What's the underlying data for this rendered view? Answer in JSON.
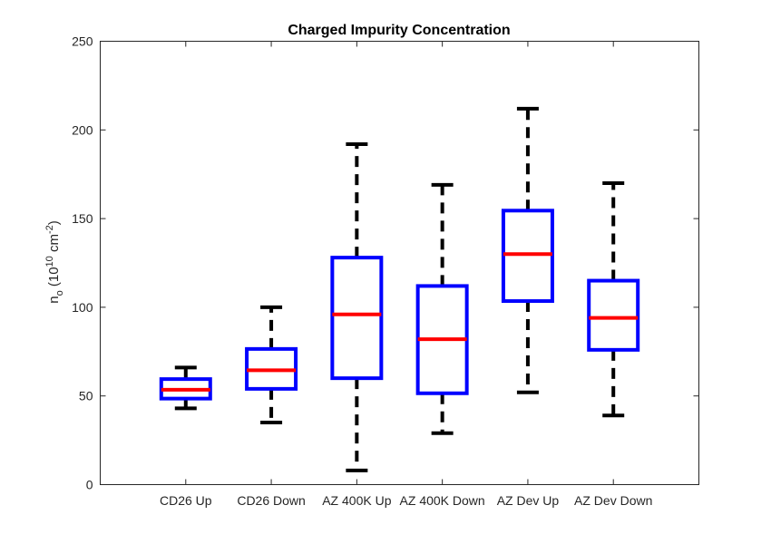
{
  "chart_data": {
    "type": "boxplot",
    "title": "Charged Impurity Concentration",
    "xlabel": "",
    "ylabel": {
      "main": "n",
      "sub": "o",
      "unit_open": " (10",
      "unit_exp1": "10",
      "unit_mid": " cm",
      "unit_exp2": "-2",
      "unit_close": ")"
    },
    "ylim": [
      0,
      250
    ],
    "yticks": [
      "0",
      "50",
      "100",
      "150",
      "200",
      "250"
    ],
    "grid": false,
    "categories": [
      "CD26 Up",
      "CD26 Down",
      "AZ 400K Up",
      "AZ 400K Down",
      "AZ Dev Up",
      "AZ Dev Down"
    ],
    "boxes": [
      {
        "whisker_low": 43,
        "q1": 48.5,
        "median": 53.5,
        "q3": 59.5,
        "whisker_high": 66
      },
      {
        "whisker_low": 35,
        "q1": 54,
        "median": 64.5,
        "q3": 76.5,
        "whisker_high": 100
      },
      {
        "whisker_low": 8,
        "q1": 60,
        "median": 96,
        "q3": 128,
        "whisker_high": 192
      },
      {
        "whisker_low": 29,
        "q1": 51.5,
        "median": 82,
        "q3": 112,
        "whisker_high": 169
      },
      {
        "whisker_low": 52,
        "q1": 103.5,
        "median": 130,
        "q3": 154.5,
        "whisker_high": 212
      },
      {
        "whisker_low": 39,
        "q1": 76,
        "median": 94,
        "q3": 115,
        "whisker_high": 170
      }
    ],
    "colors": {
      "box": "#0000ff",
      "median": "#ff0000",
      "whisker": "#000000",
      "axis": "#262626"
    }
  }
}
